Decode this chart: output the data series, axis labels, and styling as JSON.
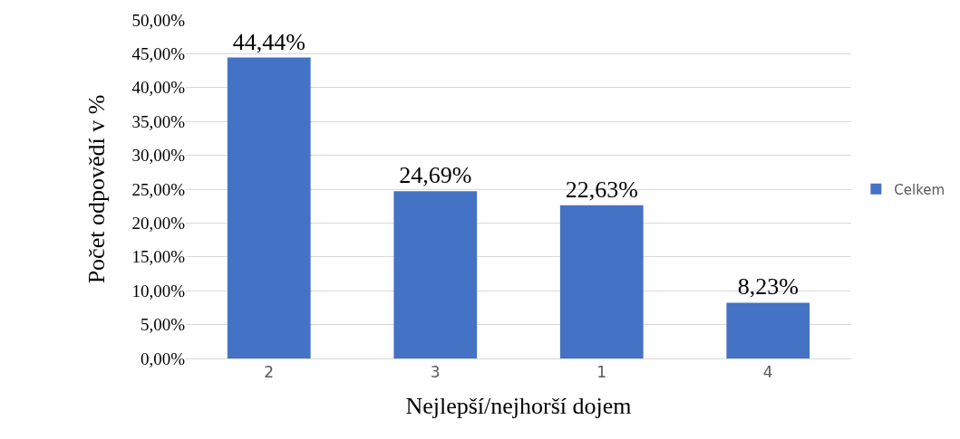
{
  "chart_data": {
    "type": "bar",
    "xlabel": "Nejlepší/nejhorší dojem",
    "ylabel": "Počet odpovědí v %",
    "categories": [
      "2",
      "3",
      "1",
      "4"
    ],
    "series": [
      {
        "name": "Celkem",
        "color": "#4472c4",
        "values": [
          44.44,
          24.69,
          22.63,
          8.23
        ],
        "value_labels": [
          "44,44%",
          "24,69%",
          "22,63%",
          "8,23%"
        ]
      }
    ],
    "ylim": [
      0,
      50
    ],
    "yticks": [
      {
        "value": 0,
        "label": "0,00%"
      },
      {
        "value": 5,
        "label": "5,00%"
      },
      {
        "value": 10,
        "label": "10,00%"
      },
      {
        "value": 15,
        "label": "15,00%"
      },
      {
        "value": 20,
        "label": "20,00%"
      },
      {
        "value": 25,
        "label": "25,00%"
      },
      {
        "value": 30,
        "label": "30,00%"
      },
      {
        "value": 35,
        "label": "35,00%"
      },
      {
        "value": 40,
        "label": "40,00%"
      },
      {
        "value": 45,
        "label": "45,00%"
      },
      {
        "value": 50,
        "label": "50,00%"
      }
    ],
    "grid": "y",
    "legend": "right"
  }
}
